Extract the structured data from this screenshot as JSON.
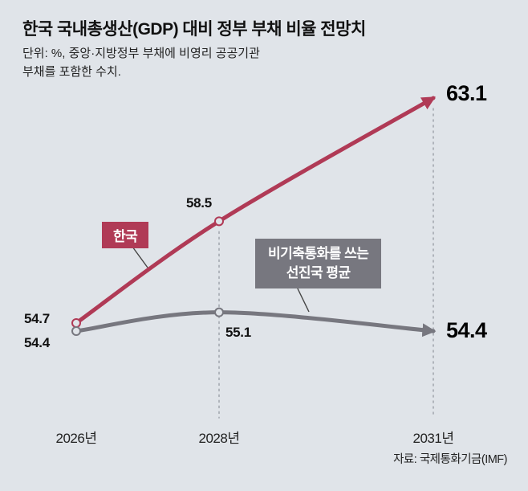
{
  "header": {
    "title": "한국 국내총생산(GDP) 대비 정부 부채 비율 전망치",
    "subtitle_line1": "단위: %, 중앙·지방정부 부채에 비영리 공공기관",
    "subtitle_line2": "부채를 포함한 수치."
  },
  "annotations": {
    "korea_badge": "한국",
    "advanced_badge_line1": "비기축통화를 쓰는",
    "advanced_badge_line2": "선진국 평균"
  },
  "colors": {
    "background": "#e0e4e9",
    "korea": "#b03a56",
    "advanced": "#77777f",
    "dashed": "#a3a8b0",
    "tail": "#444444",
    "text": "#111111"
  },
  "chart_data": {
    "type": "line",
    "title": "한국 국내총생산(GDP) 대비 정부 부채 비율 전망치",
    "unit_note": "단위: %, 중앙·지방정부 부채에 비영리 공공기관 부채를 포함한 수치.",
    "x": [
      2026,
      2028,
      2031
    ],
    "x_tick_labels": [
      "2026년",
      "2028년",
      "2031년"
    ],
    "ylim": [
      52,
      65
    ],
    "grid": false,
    "legend_position": "inline-badges",
    "series": [
      {
        "name": "한국",
        "color": "#b03a56",
        "values": [
          54.7,
          58.5,
          63.1
        ]
      },
      {
        "name": "비기축통화를 쓰는 선진국 평균",
        "color": "#77777f",
        "values": [
          54.4,
          55.1,
          54.4
        ]
      }
    ],
    "source": "자료: 국제통화기금(IMF)"
  }
}
